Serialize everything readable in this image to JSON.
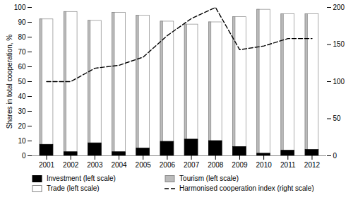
{
  "chart_data": {
    "type": "bar",
    "categories": [
      "2001",
      "2002",
      "2003",
      "2004",
      "2005",
      "2006",
      "2007",
      "2008",
      "2009",
      "2010",
      "2011",
      "2012"
    ],
    "ylabel": "Shares in total cooperation, %",
    "ylim": [
      0,
      100
    ],
    "yticks": [
      0,
      10,
      20,
      30,
      40,
      50,
      60,
      70,
      80,
      90,
      100
    ],
    "y2lim": [
      0,
      200
    ],
    "y2ticks": [
      0,
      50,
      100,
      150,
      200
    ],
    "grid": false,
    "legend": "bottom",
    "series": [
      {
        "name": "Investment (left scale)",
        "color": "#000000",
        "values": [
          7.5,
          2.5,
          8.5,
          2.5,
          5.0,
          9.5,
          11.0,
          10.0,
          6.0,
          1.5,
          3.5,
          4.0
        ]
      },
      {
        "name": "Trade (left scale)",
        "color": "#ffffff",
        "values": [
          92.0,
          97.0,
          91.0,
          96.5,
          94.5,
          90.5,
          88.5,
          90.0,
          93.5,
          98.5,
          95.5,
          95.5
        ]
      },
      {
        "name": "Tourism (left scale)",
        "color": "#bbbbbb",
        "values": [
          92.0,
          97.0,
          91.0,
          96.5,
          94.5,
          90.5,
          88.5,
          90.0,
          93.5,
          98.5,
          95.5,
          95.5
        ]
      },
      {
        "name": "Harmonised cooperation index (right scale)",
        "type": "line",
        "axis": "y2",
        "color": "#000000",
        "line_style": "dashed",
        "values": [
          100,
          100,
          118,
          122,
          133,
          162,
          185,
          200,
          143,
          148,
          158,
          158
        ]
      }
    ]
  }
}
